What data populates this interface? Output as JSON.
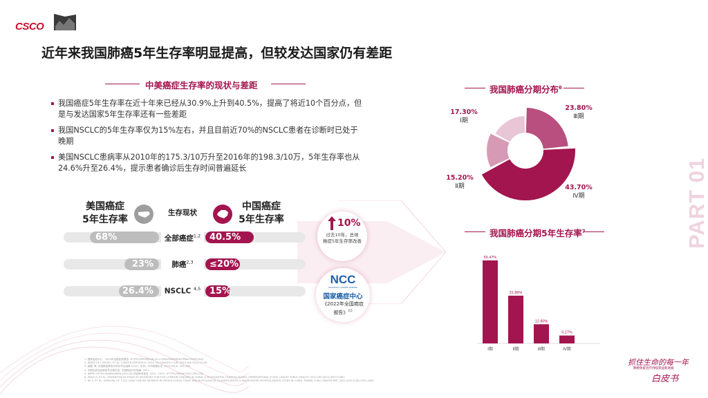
{
  "header": {
    "logo_text": "CSCO",
    "title": "近年来我国肺癌5年生存率明显提高，但较发达国家仍有差距"
  },
  "left": {
    "section_title": "中美癌症生存率的现状与差距",
    "bullets": [
      "我国癌症5年生存率在近十年来已经从30.9%上升到40.5%，提高了将近10个百分点，但是与发达国家5年生存率还有一些差距",
      "我国NSCLC的5年生存率仅为15%左右，并且目前近70%的NSCLC患者在诊断时已处于晚期",
      "美国NSCLC患病率从2010年的175.3/10万升至2016年的198.3/10万，5年生存率也从24.6%升至26.4%，提示患者确诊后生存时间普遍延长"
    ],
    "us_header": [
      "美国癌症",
      "5年生存率"
    ],
    "cn_header": [
      "中国癌症",
      "5年生存率"
    ],
    "center_header": "生存现状",
    "rows": [
      {
        "label": "全部癌症",
        "sup": "1,2",
        "us": "68%",
        "cn": "40.5%"
      },
      {
        "label": "肺癌",
        "sup": "2,3",
        "us": "23%",
        "cn": "≤20%"
      },
      {
        "label": "NSCLC ",
        "sup": "4,5",
        "us": "26.4%",
        "cn": "15%"
      }
    ],
    "increase": {
      "value": "10%",
      "desc": [
        "过去10年，总体",
        "癌症5年生存率改善"
      ]
    },
    "ncc": {
      "logo": "NCC",
      "logo_sub": "NATIONAL CANCER CENTER",
      "name": "国家癌症中心",
      "report": [
        "《2022年全国癌症",
        "报告》"
      ],
      "report_sup": "4,5"
    }
  },
  "right": {
    "pie_title": "我国肺癌分期分布",
    "pie_title_sup": "6",
    "bar_title": "我国肺癌分期5年生存率",
    "bar_title_sup": "7",
    "part_label": "PART 01",
    "pie_labels": [
      {
        "pct": "17.30%",
        "stage": "Ⅰ期"
      },
      {
        "pct": "23.80%",
        "stage": "Ⅲ期"
      },
      {
        "pct": "15.20%",
        "stage": "Ⅱ期"
      },
      {
        "pct": "43.70%",
        "stage": "Ⅳ期"
      }
    ]
  },
  "chart_data": [
    {
      "type": "pie",
      "title": "我国肺癌分期分布",
      "categories": [
        "Ⅰ期",
        "Ⅱ期",
        "Ⅲ期",
        "Ⅳ期"
      ],
      "values": [
        17.3,
        15.2,
        23.8,
        43.7
      ]
    },
    {
      "type": "bar",
      "title": "我国肺癌分期5年生存率",
      "categories": [
        "Ⅰ期",
        "Ⅱ期",
        "Ⅲ期",
        "Ⅳ期"
      ],
      "values": [
        55.47,
        31.89,
        12.8,
        5.27
      ],
      "value_labels": [
        "55.47%",
        "31.89%",
        "12.80%",
        "5.27%"
      ],
      "ylim": [
        0,
        60
      ]
    }
  ],
  "footer": {
    "refs": [
      "1. 国家癌症中心，2022年全国癌症报告. HTTPS://MP.WEIXIN.QQ.COM/S/IZBWSJRNTIPNR2TAQZY-ASQ",
      "2. REBECCA L SIEGEL, ET AL. CANCER STATISTICS, 2023. CA CANCER J CLIN. 2023 JAN;73(1):17-48.",
      "3. 赫捷, 等. 中国肺癌筛查与早诊早治指南 (2021, 北京). 中华肿瘤杂志. 2021;43(3): 243-268.",
      "4. 中国抗癌协会肺癌专业委员会. 中国肺癌诊疗指南. 2021.",
      "5. NMPA. HTTPS://WWW.NMPA.GOV.CN/ 药品审评报告. 2021. CSCO. HTTPS://WWW.CSCO.ORG.CN/",
      "6. ZENG H, ET AL. DISPARITIES IN STAGE AT DIAGNOSIS FOR FIVE COMMON CANCERS IN CHINA: A MULTICENTRE, HOSPITAL-BASED, OBSERVATIONAL STUDY. LANCET PUBLIC HEALTH. 2021 DEC;6(12):E877-E887.",
      "7. HE S, ET AL. SURVIVAL OF 7,311 LUNG CANCER PATIENTS BY PATHOLOGICAL STAGE AND HISTOLOGICAL CLASSIFICATION: A MULTICENTER HOSPITAL-BASED STUDY IN CHINA. TRANSL LUNG CANCER RES. 2022 AUG;11(8):1591-1605."
    ],
    "slogan": "抓住生命的每一年",
    "slogan_sub": "肺癌免疫治疗持续获益新进展",
    "signature": "白皮书"
  },
  "colors": {
    "accent": "#a3154f",
    "brand_red": "#c8102e",
    "grey": "#bdbdbd"
  }
}
